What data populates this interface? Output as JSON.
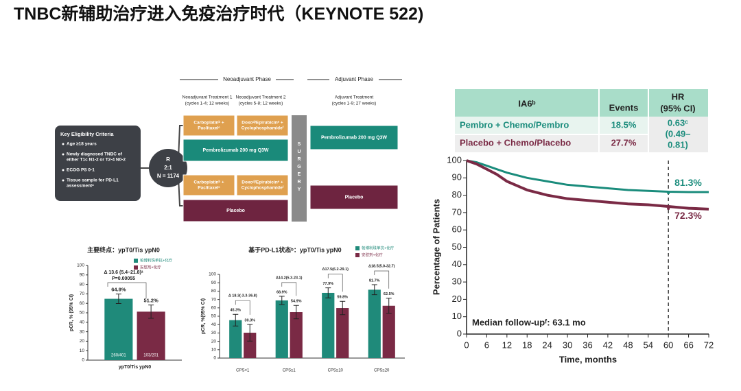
{
  "title": "TNBC新辅助治疗进入免疫治疗时代（KEYNOTE 522)",
  "schema": {
    "phases": [
      "Neoadjuvant Phase",
      "Adjuvant Phase"
    ],
    "columns": [
      {
        "title": "Neoadjuvant Treatment 1",
        "sub": "(cycles 1-4; 12 weeks)"
      },
      {
        "title": "Neoadjuvant Treatment 2",
        "sub": "(cycles 5-8; 12 weeks)"
      },
      {
        "title": "Adjuvant Treatment",
        "sub": "(cycles 1-9; 27 weeks)"
      }
    ],
    "eligibility": {
      "title": "Key Eligibility Criteria",
      "items": [
        [
          "Age ≥18 years"
        ],
        [
          "Newly diagnosed TNBC of",
          "either T1c N1-2 or T2-4 N0-2"
        ],
        [
          "ECOG PS 0-1"
        ],
        [
          "Tissue sample for PD-L1",
          "assessmentᵃ"
        ]
      ]
    },
    "randomization": [
      "R",
      "2:1",
      "N = 1174"
    ],
    "chemo1": [
      "Carboplatinᵇ +",
      "Paclitaxelᶜ"
    ],
    "chemo2": [
      "Doxoᵈ/Epirubicinᵉ +",
      "Cyclophosphamideᶠ"
    ],
    "pembro": "Pembrolizumab 200 mg Q3W",
    "placebo": "Placebo",
    "surgery": [
      "S",
      "U",
      "R",
      "G",
      "E",
      "R",
      "Y"
    ]
  },
  "table": {
    "header": [
      "IA6ᵇ",
      "Events",
      [
        "HR",
        "(95% CI)"
      ]
    ],
    "rows": [
      [
        "Pembro + Chemo/Pembro",
        "18.5%"
      ],
      [
        "Placebo + Chemo/Placebo",
        "27.7%"
      ]
    ],
    "hr": [
      "0.63ᶜ",
      "(0.49–",
      "0.81)"
    ]
  },
  "chart_data": [
    {
      "type": "bar",
      "title": "主要终点：ypT0/Tis ypN0",
      "categories": [
        "ypT0/Tis ypN0"
      ],
      "y_label": "pCR, % (95% CI)",
      "series": [
        {
          "name": "帕博利珠单抗+化疗",
          "color": "#1f8a7a",
          "values": [
            64.8
          ],
          "value_labels": [
            "64.8%"
          ],
          "errors": [
            5
          ],
          "inner_labels": [
            "260/401"
          ]
        },
        {
          "name": "安慰剂+化疗",
          "color": "#7a2a45",
          "values": [
            51.2
          ],
          "value_labels": [
            "51.2%"
          ],
          "errors": [
            7
          ],
          "inner_labels": [
            "103/201"
          ]
        }
      ],
      "annotations": [
        "Δ 13.6 (5.4–21.8)ᵃ",
        "P=0.00055"
      ],
      "ylim": [
        0,
        100
      ],
      "yticks": [
        0,
        10,
        20,
        30,
        40,
        50,
        60,
        70,
        80,
        90,
        100
      ]
    },
    {
      "type": "bar",
      "title": "基于PD-L1状态ᵇ：ypT0/Tis ypN0",
      "categories": [
        "CPS<1",
        "CPS≥1",
        "CPS≥10",
        "CPS≥20"
      ],
      "y_label": "pCR, %(95% CI)",
      "series": [
        {
          "name": "帕博利珠单抗+化疗",
          "color": "#1f8a7a",
          "values": [
            45.3,
            68.9,
            77.9,
            81.7
          ],
          "value_labels": [
            "45.3%",
            "68.9%",
            "77.9%",
            "81.7%"
          ],
          "errors": [
            7,
            5,
            6,
            6
          ]
        },
        {
          "name": "安慰剂+化疗",
          "color": "#7a2a45",
          "values": [
            30.3,
            54.9,
            59.8,
            62.5
          ],
          "value_labels": [
            "30.3%",
            "54.9%",
            "59.8%",
            "62.5%"
          ],
          "errors": [
            10,
            8,
            8,
            9
          ]
        }
      ],
      "annotations": [
        "Δ 18.3(-3.3-36.8)",
        "Δ14.2(5.3-23.1)",
        "Δ17.5(6.2-29.1)",
        "Δ18.5(5.0-32.7)"
      ],
      "ylim": [
        0,
        100
      ],
      "yticks": [
        0,
        10,
        20,
        30,
        40,
        50,
        60,
        70,
        80,
        90,
        100
      ]
    },
    {
      "type": "line",
      "x_label": "Time, months",
      "y_label": "Percentage of Patients",
      "x": [
        0,
        3,
        6,
        9,
        12,
        18,
        24,
        30,
        36,
        42,
        48,
        54,
        60,
        66,
        72
      ],
      "series": [
        {
          "name": "Pembro + Chemo/Pembro",
          "color": "#1a8c7c",
          "values": [
            100,
            99,
            97,
            95,
            93,
            90,
            88,
            86,
            85,
            84,
            83,
            82.5,
            82,
            81.8,
            81.8
          ]
        },
        {
          "name": "Placebo + Chemo/Placebo",
          "color": "#7a2a45",
          "values": [
            100,
            98,
            95,
            92,
            88,
            83,
            80,
            78,
            77,
            76,
            75,
            74.5,
            73.5,
            72.5,
            72
          ]
        }
      ],
      "annotations": [
        {
          "text": "81.3%",
          "x": 60,
          "value": 81.3
        },
        {
          "text": "72.3%",
          "x": 60,
          "value": 72.3
        }
      ],
      "note": "Median follow-upᶠ: 63.1 mo",
      "vline": 60,
      "xlim": [
        0,
        72
      ],
      "xticks": [
        0,
        6,
        12,
        18,
        24,
        30,
        36,
        42,
        48,
        54,
        60,
        66,
        72
      ],
      "ylim": [
        0,
        100
      ],
      "yticks": [
        0,
        10,
        20,
        30,
        40,
        50,
        60,
        70,
        80,
        90,
        100
      ]
    }
  ]
}
